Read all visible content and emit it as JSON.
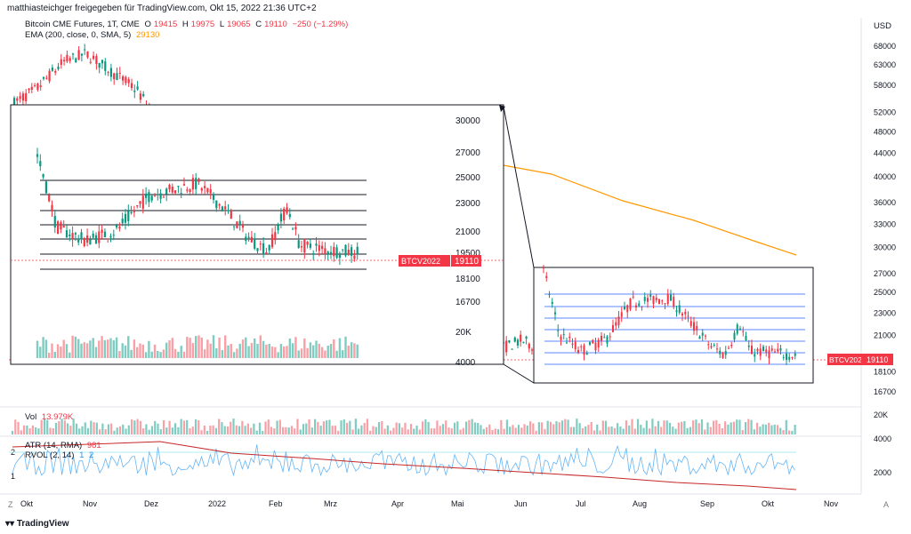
{
  "header": {
    "text": "matthiasteichger freigegeben für TradingView.com, Okt 15, 2022 21:36 UTC+2"
  },
  "legend": {
    "symbol": "Bitcoin CME Futures, 1T, CME",
    "o_label": "O",
    "o": "19415",
    "h_label": "H",
    "h": "19975",
    "l_label": "L",
    "l": "19065",
    "c_label": "C",
    "c": "19110",
    "change": "−250 (−1.29%)",
    "ema_label": "EMA (200, close, 0, SMA, 5)",
    "ema_value": "29130",
    "vol_label": "Vol",
    "vol_value": "13.979K",
    "atr_label": "ATR (14, RMA)",
    "atr_value": "981",
    "rvol_label": "RVOL (2, 14)",
    "rvol_value1": "1",
    "rvol_value2": "2"
  },
  "price_axis": {
    "currency": "USD",
    "ticks": [
      "68000",
      "63000",
      "58000",
      "52000",
      "48000",
      "44000",
      "40000",
      "36000",
      "33000",
      "30000",
      "27000",
      "25000",
      "23000",
      "21000",
      "18100",
      "16700"
    ],
    "tag_label": "BTCV2022",
    "tag_value": "19110"
  },
  "inset_axis": {
    "ticks": [
      "30000",
      "27000",
      "25000",
      "23000",
      "21000",
      "19500",
      "18100",
      "16700",
      "20K",
      "4000"
    ],
    "tag_label": "BTCV2022",
    "tag_value": "19110"
  },
  "volume_axis": {
    "ticks": [
      "20K"
    ]
  },
  "indicator_axis": {
    "ticks": [
      "4000",
      "2000"
    ],
    "left_ticks": [
      "2",
      "1"
    ]
  },
  "time_axis": {
    "labels": [
      "Okt",
      "Nov",
      "Dez",
      "2022",
      "Feb",
      "Mrz",
      "Apr",
      "Mai",
      "Jun",
      "Jul",
      "Aug",
      "Sep",
      "Okt",
      "Nov"
    ]
  },
  "chart_data": {
    "type": "candlestick",
    "title": "Bitcoin CME Futures, 1T, CME",
    "series": [
      {
        "name": "EMA (200, close, 0, SMA, 5)",
        "last": 29130
      },
      {
        "name": "Vol",
        "last": 13979
      },
      {
        "name": "ATR (14, RMA)",
        "last": 981
      },
      {
        "name": "RVOL (2, 14)",
        "last": 2
      }
    ],
    "ohlc_last": {
      "open": 19415,
      "high": 19975,
      "low": 19065,
      "close": 19110
    },
    "ylim": [
      16700,
      68000
    ],
    "yscale": "log",
    "horizontal_levels": [
      24700,
      23700,
      22500,
      21500,
      20500,
      19500,
      18500
    ],
    "grid": false,
    "legend_position": "top-left"
  },
  "footer": {
    "brand": "TradingView",
    "zoom_left": "Z",
    "zoom_right": "A"
  },
  "colors": {
    "up": "#089981",
    "down": "#f23645",
    "ema": "#ff9800",
    "atr": "#c62828",
    "rvol": "#64b5f6",
    "tag": "#f23645"
  }
}
